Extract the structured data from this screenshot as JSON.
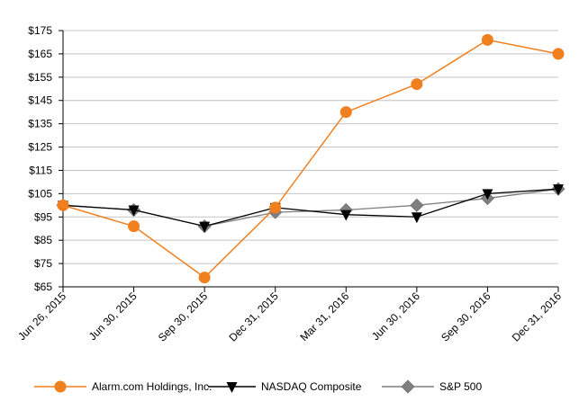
{
  "chart_data": {
    "type": "line",
    "title": "",
    "xlabel": "",
    "ylabel": "",
    "categories": [
      "Jun 26, 2015",
      "Jun 30, 2015",
      "Sep 30, 2015",
      "Dec 31, 2015",
      "Mar 31, 2016",
      "Jun 30, 2016",
      "Sep 30, 2016",
      "Dec 31, 2016"
    ],
    "ylim": [
      65,
      175
    ],
    "yticks": [
      65,
      75,
      85,
      95,
      105,
      115,
      125,
      135,
      145,
      155,
      165,
      175
    ],
    "y_tick_labels": [
      "$65",
      "$75",
      "$85",
      "$95",
      "$105",
      "$115",
      "$125",
      "$135",
      "$145",
      "$155",
      "$165",
      "$175"
    ],
    "grid": "horizontal",
    "legend_position": "bottom",
    "series": [
      {
        "name": "Alarm.com Holdings, Inc.",
        "color": "#f07f1e",
        "marker": "circle",
        "values": [
          100,
          91,
          69,
          99,
          140,
          152,
          171,
          165
        ]
      },
      {
        "name": "NASDAQ Composite",
        "color": "#000000",
        "marker": "triangle-down",
        "values": [
          100,
          98,
          91,
          99,
          96,
          95,
          105,
          107
        ]
      },
      {
        "name": "S&P 500",
        "color": "#808080",
        "marker": "diamond",
        "values": [
          100,
          98,
          91,
          97,
          98,
          100,
          103,
          107
        ]
      }
    ]
  }
}
